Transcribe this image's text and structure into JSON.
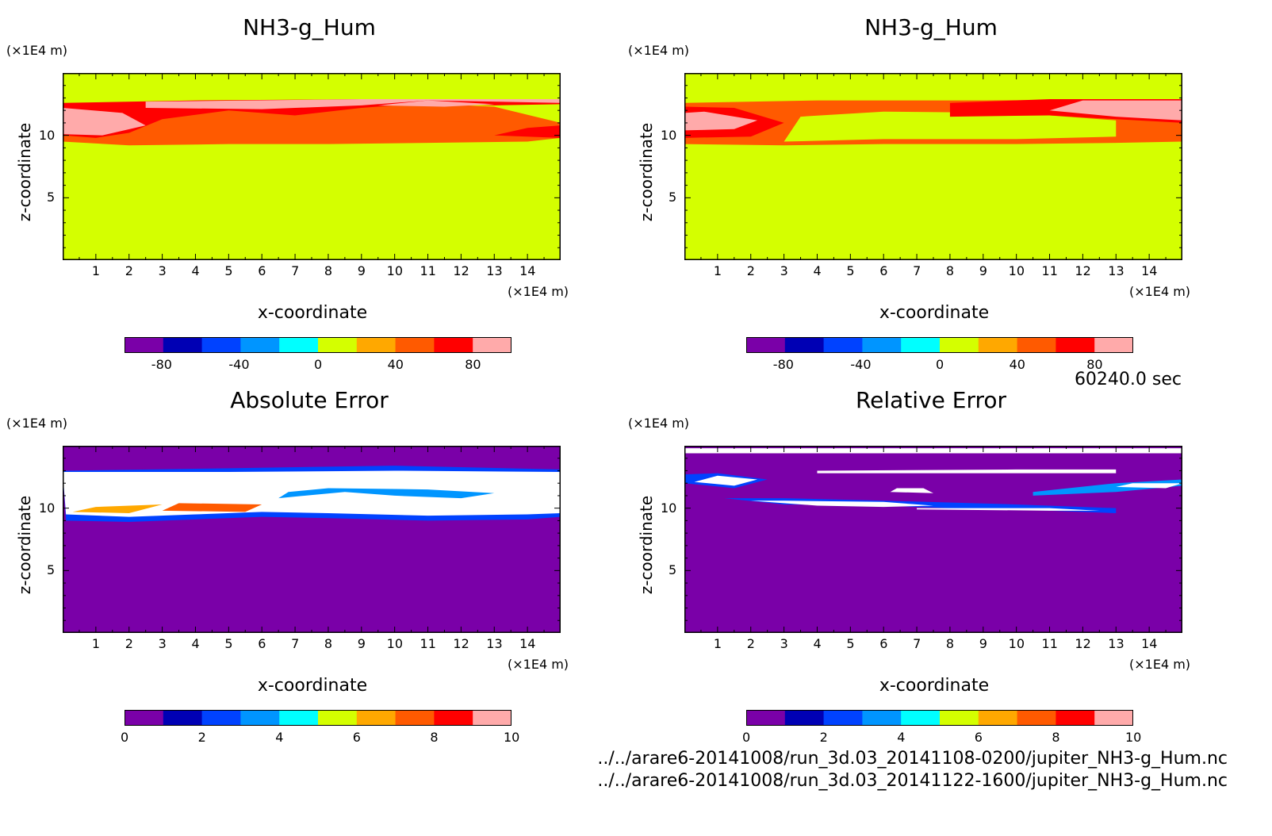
{
  "chart_data": [
    {
      "type": "heatmap",
      "title": "NH3-g_Hum",
      "xlabel": "x-coordinate",
      "ylabel": "z-coordinate",
      "xunit": "(×1E4 m)",
      "zunit": "(×1E4 m)",
      "xticks": [
        "1",
        "2",
        "3",
        "4",
        "5",
        "6",
        "7",
        "8",
        "9",
        "10",
        "11",
        "12",
        "13",
        "14"
      ],
      "yticks": [
        "5",
        "10"
      ],
      "xlim": [
        0,
        15
      ],
      "ylim": [
        0,
        15
      ],
      "colorbar_ticks": [
        "-80",
        "-40",
        "0",
        "40",
        "80"
      ],
      "colorbar_range": [
        -100,
        100
      ],
      "colorbar_colors": [
        "#7a00a8",
        "#0000b4",
        "#0042ff",
        "#0095ff",
        "#00ffff",
        "#d4ff00",
        "#ffa800",
        "#ff5a00",
        "#ff0000",
        "#ffaaaa"
      ],
      "background_value": 0,
      "layers": [
        {
          "value": 40,
          "pts": [
            [
              0,
              9.5
            ],
            [
              2,
              9.2
            ],
            [
              5,
              9.3
            ],
            [
              8,
              9.3
            ],
            [
              11,
              9.4
            ],
            [
              14,
              9.5
            ],
            [
              15,
              9.8
            ],
            [
              15,
              11
            ],
            [
              13,
              12.3
            ],
            [
              9,
              12.8
            ],
            [
              5,
              12.7
            ],
            [
              2,
              12.4
            ],
            [
              0,
              12.3
            ]
          ]
        },
        {
          "value": 60,
          "pts": [
            [
              0,
              10.0
            ],
            [
              1,
              9.8
            ],
            [
              2,
              10.2
            ],
            [
              3,
              11.3
            ],
            [
              5,
              12.0
            ],
            [
              7,
              11.6
            ],
            [
              9,
              12.2
            ],
            [
              11,
              12.6
            ],
            [
              13,
              12.4
            ],
            [
              15,
              12.5
            ],
            [
              15,
              12.9
            ],
            [
              9,
              12.9
            ],
            [
              4,
              12.8
            ],
            [
              0,
              12.6
            ]
          ]
        },
        {
          "value": 80,
          "pts": [
            [
              0,
              10.1
            ],
            [
              1.2,
              10.0
            ],
            [
              2.5,
              10.8
            ],
            [
              1.8,
              11.8
            ],
            [
              0,
              12.2
            ]
          ]
        },
        {
          "value": 80,
          "pts": [
            [
              2.5,
              12.2
            ],
            [
              6,
              12.1
            ],
            [
              9,
              12.4
            ],
            [
              11,
              12.8
            ],
            [
              15,
              12.6
            ],
            [
              15,
              12.9
            ],
            [
              9,
              12.9
            ],
            [
              2.5,
              12.7
            ]
          ]
        },
        {
          "value": 90,
          "pts": [
            [
              0,
              10.7
            ],
            [
              1,
              10.6
            ],
            [
              1.8,
              11.3
            ],
            [
              0.5,
              11.6
            ],
            [
              0,
              11.5
            ]
          ]
        },
        {
          "value": 90,
          "pts": [
            [
              9.5,
              12.4
            ],
            [
              11.5,
              12.3
            ],
            [
              13,
              12.5
            ],
            [
              11,
              12.8
            ]
          ]
        },
        {
          "value": 60,
          "pts": [
            [
              13,
              10.0
            ],
            [
              15,
              9.8
            ],
            [
              15,
              10.8
            ],
            [
              14,
              10.6
            ]
          ]
        }
      ]
    },
    {
      "type": "heatmap",
      "title": "NH3-g_Hum",
      "xlabel": "x-coordinate",
      "ylabel": "z-coordinate",
      "xunit": "(×1E4 m)",
      "zunit": "(×1E4 m)",
      "xticks": [
        "1",
        "2",
        "3",
        "4",
        "5",
        "6",
        "7",
        "8",
        "9",
        "10",
        "11",
        "12",
        "13",
        "14"
      ],
      "yticks": [
        "5",
        "10"
      ],
      "xlim": [
        0,
        15
      ],
      "ylim": [
        0,
        15
      ],
      "colorbar_ticks": [
        "-80",
        "-40",
        "0",
        "40",
        "80"
      ],
      "colorbar_range": [
        -100,
        100
      ],
      "colorbar_colors": [
        "#7a00a8",
        "#0000b4",
        "#0042ff",
        "#0095ff",
        "#00ffff",
        "#d4ff00",
        "#ffa800",
        "#ff5a00",
        "#ff0000",
        "#ffaaaa"
      ],
      "background_value": 0,
      "layers": [
        {
          "value": 40,
          "pts": [
            [
              0,
              9.3
            ],
            [
              3,
              9.2
            ],
            [
              6,
              9.3
            ],
            [
              10,
              9.3
            ],
            [
              13,
              9.4
            ],
            [
              15,
              9.5
            ],
            [
              15,
              12.9
            ],
            [
              9,
              12.8
            ],
            [
              4,
              12.8
            ],
            [
              0,
              12.6
            ]
          ]
        },
        {
          "value": 0,
          "pts": [
            [
              3,
              9.5
            ],
            [
              6,
              9.7
            ],
            [
              10,
              9.7
            ],
            [
              13,
              9.9
            ],
            [
              13,
              11.2
            ],
            [
              10,
              11.8
            ],
            [
              6,
              11.9
            ],
            [
              3.5,
              11.5
            ]
          ]
        },
        {
          "value": 60,
          "pts": [
            [
              0,
              9.8
            ],
            [
              2,
              9.9
            ],
            [
              3,
              11.0
            ],
            [
              1.5,
              12.2
            ],
            [
              0,
              12.3
            ]
          ]
        },
        {
          "value": 80,
          "pts": [
            [
              0,
              10.4
            ],
            [
              1.5,
              10.5
            ],
            [
              2.2,
              11.2
            ],
            [
              0.6,
              11.9
            ],
            [
              0,
              11.8
            ]
          ]
        },
        {
          "value": 60,
          "pts": [
            [
              8,
              11.5
            ],
            [
              11,
              11.6
            ],
            [
              13,
              11.3
            ],
            [
              15,
              11.0
            ],
            [
              15,
              12.9
            ],
            [
              11,
              12.9
            ],
            [
              8,
              12.6
            ]
          ]
        },
        {
          "value": 80,
          "pts": [
            [
              11,
              12.0
            ],
            [
              13,
              11.5
            ],
            [
              15,
              11.2
            ],
            [
              15,
              12.8
            ],
            [
              12,
              12.8
            ]
          ]
        },
        {
          "value": 90,
          "pts": [
            [
              13.5,
              11.6
            ],
            [
              15,
              11.5
            ],
            [
              15,
              12.6
            ],
            [
              13.8,
              12.4
            ]
          ]
        }
      ]
    },
    {
      "type": "heatmap",
      "title": "Absolute Error",
      "xlabel": "x-coordinate",
      "ylabel": "z-coordinate",
      "xunit": "(×1E4 m)",
      "zunit": "(×1E4 m)",
      "xticks": [
        "1",
        "2",
        "3",
        "4",
        "5",
        "6",
        "7",
        "8",
        "9",
        "10",
        "11",
        "12",
        "13",
        "14"
      ],
      "yticks": [
        "5",
        "10"
      ],
      "xlim": [
        0,
        15
      ],
      "ylim": [
        0,
        15
      ],
      "colorbar_ticks": [
        "0",
        "2",
        "4",
        "6",
        "8",
        "10"
      ],
      "colorbar_range": [
        0,
        10
      ],
      "colorbar_colors": [
        "#7a00a8",
        "#0000b4",
        "#0042ff",
        "#0095ff",
        "#00ffff",
        "#d4ff00",
        "#ffa800",
        "#ff5a00",
        "#ff0000",
        "#ffaaaa"
      ],
      "background_value": 0.5,
      "layers": [
        {
          "value": 2.5,
          "pts": [
            [
              0.1,
              9.0
            ],
            [
              2,
              8.9
            ],
            [
              4,
              9.1
            ],
            [
              6,
              9.3
            ],
            [
              8,
              9.2
            ],
            [
              11,
              9.0
            ],
            [
              14,
              9.1
            ],
            [
              15,
              9.3
            ],
            [
              15,
              13.1
            ],
            [
              10,
              13.4
            ],
            [
              5,
              13.2
            ],
            [
              0,
              13.0
            ]
          ]
        },
        {
          "value": 11,
          "pts": [
            [
              0.1,
              9.5
            ],
            [
              2,
              9.3
            ],
            [
              4,
              9.5
            ],
            [
              6,
              9.7
            ],
            [
              8,
              9.6
            ],
            [
              11,
              9.4
            ],
            [
              14,
              9.5
            ],
            [
              15,
              9.6
            ],
            [
              15,
              12.9
            ],
            [
              10,
              13.0
            ],
            [
              5,
              12.9
            ],
            [
              0,
              12.9
            ]
          ]
        },
        {
          "value": 3.5,
          "pts": [
            [
              6.5,
              10.8
            ],
            [
              8.5,
              11.3
            ],
            [
              10,
              11.0
            ],
            [
              12,
              10.8
            ],
            [
              13,
              11.2
            ],
            [
              11,
              11.5
            ],
            [
              8,
              11.6
            ],
            [
              6.8,
              11.3
            ]
          ]
        },
        {
          "value": 6.5,
          "pts": [
            [
              0.3,
              9.7
            ],
            [
              2,
              9.6
            ],
            [
              3,
              10.3
            ],
            [
              1,
              10.1
            ]
          ]
        },
        {
          "value": 7.5,
          "pts": [
            [
              3,
              9.8
            ],
            [
              5.5,
              9.7
            ],
            [
              6,
              10.3
            ],
            [
              3.5,
              10.4
            ]
          ]
        }
      ]
    },
    {
      "type": "heatmap",
      "title": "Relative Error",
      "xlabel": "x-coordinate",
      "ylabel": "z-coordinate",
      "xunit": "(×1E4 m)",
      "zunit": "(×1E4 m)",
      "xticks": [
        "1",
        "2",
        "3",
        "4",
        "5",
        "6",
        "7",
        "8",
        "9",
        "10",
        "11",
        "12",
        "13",
        "14"
      ],
      "yticks": [
        "5",
        "10"
      ],
      "xlim": [
        0,
        15
      ],
      "ylim": [
        0,
        15
      ],
      "colorbar_ticks": [
        "0",
        "2",
        "4",
        "6",
        "8",
        "10"
      ],
      "colorbar_range": [
        0,
        10
      ],
      "colorbar_colors": [
        "#7a00a8",
        "#0000b4",
        "#0042ff",
        "#0095ff",
        "#00ffff",
        "#d4ff00",
        "#ffa800",
        "#ff5a00",
        "#ff0000",
        "#ffaaaa"
      ],
      "background_value": 0.5,
      "layers": [
        {
          "value": 11,
          "pts": [
            [
              0,
              14.4
            ],
            [
              15,
              14.4
            ],
            [
              15,
              14.8
            ],
            [
              0,
              14.8
            ]
          ]
        },
        {
          "value": 11,
          "pts": [
            [
              4,
              13.0
            ],
            [
              10,
              13.1
            ],
            [
              13,
              13.1
            ],
            [
              13,
              12.8
            ],
            [
              10,
              12.8
            ],
            [
              4,
              12.8
            ]
          ]
        },
        {
          "value": 2.5,
          "pts": [
            [
              0,
              12.0
            ],
            [
              1.5,
              11.6
            ],
            [
              2.5,
              12.3
            ],
            [
              1,
              12.8
            ],
            [
              0,
              12.7
            ]
          ]
        },
        {
          "value": 11,
          "pts": [
            [
              0.3,
              12.1
            ],
            [
              1.5,
              11.8
            ],
            [
              2.2,
              12.3
            ],
            [
              1,
              12.6
            ]
          ]
        },
        {
          "value": 2.5,
          "pts": [
            [
              1.2,
              10.8
            ],
            [
              3,
              10.3
            ],
            [
              6,
              10.2
            ],
            [
              8,
              10.0
            ],
            [
              11,
              9.8
            ],
            [
              13,
              9.6
            ],
            [
              13,
              10.0
            ],
            [
              10,
              10.3
            ],
            [
              6,
              10.6
            ],
            [
              3,
              10.8
            ]
          ]
        },
        {
          "value": 11,
          "pts": [
            [
              2,
              10.6
            ],
            [
              4,
              10.2
            ],
            [
              6,
              10.1
            ],
            [
              7.5,
              10.2
            ],
            [
              6,
              10.5
            ],
            [
              3,
              10.6
            ]
          ]
        },
        {
          "value": 11,
          "pts": [
            [
              7,
              9.9
            ],
            [
              11,
              9.8
            ],
            [
              12.5,
              9.8
            ],
            [
              11,
              10.0
            ],
            [
              7,
              10.0
            ]
          ]
        },
        {
          "value": 3.5,
          "pts": [
            [
              10.5,
              11.0
            ],
            [
              13,
              11.3
            ],
            [
              15,
              11.8
            ],
            [
              15,
              12.3
            ],
            [
              13,
              12.0
            ],
            [
              10.5,
              11.3
            ]
          ]
        },
        {
          "value": 11,
          "pts": [
            [
              13,
              11.7
            ],
            [
              14.5,
              11.6
            ],
            [
              15,
              12.0
            ],
            [
              13.5,
              12.0
            ]
          ]
        },
        {
          "value": 11,
          "pts": [
            [
              6.2,
              11.3
            ],
            [
              7.5,
              11.2
            ],
            [
              7.2,
              11.6
            ],
            [
              6.4,
              11.6
            ]
          ]
        }
      ]
    }
  ],
  "footer": {
    "time_label": "60240.0 sec",
    "file1": "../../arare6-20141008/run_3d.03_20141108-0200/jupiter_NH3-g_Hum.nc",
    "file2": "../../arare6-20141008/run_3d.03_20141122-1600/jupiter_NH3-g_Hum.nc"
  }
}
